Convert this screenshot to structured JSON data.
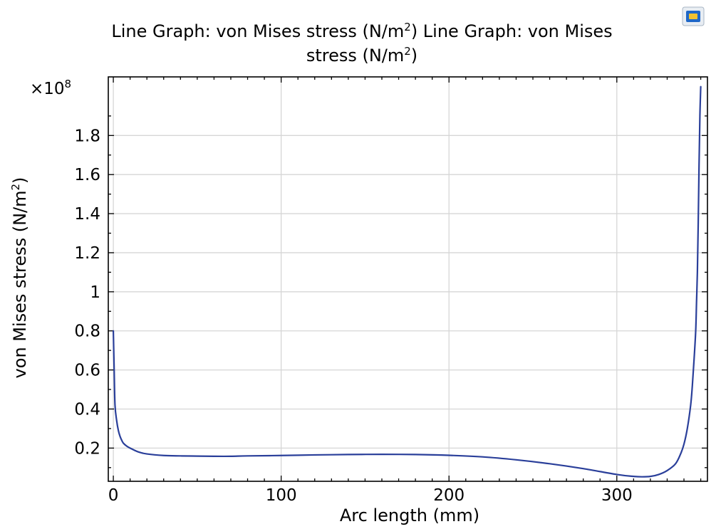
{
  "chart_data": {
    "type": "line",
    "title_line1_a": "Line Graph: von Mises stress (N/m",
    "title_line1_sup": "2",
    "title_line1_b": ")  Line Graph: von Mises",
    "title_line2_a": "stress (N/m",
    "title_line2_sup": "2",
    "title_line2_b": ")",
    "xlabel": "Arc length (mm)",
    "ylabel_a": "von Mises stress (N/m",
    "ylabel_sup": "2",
    "ylabel_b": ")",
    "y_multiplier_base": "×10",
    "y_multiplier_exp": "8",
    "xlim": [
      -3,
      354
    ],
    "ylim": [
      0.03,
      2.1
    ],
    "x_ticks": [
      0,
      100,
      200,
      300
    ],
    "x_tick_labels": [
      "0",
      "100",
      "200",
      "300"
    ],
    "y_ticks": [
      0.2,
      0.4,
      0.6,
      0.8,
      1.0,
      1.2,
      1.4,
      1.6,
      1.8
    ],
    "y_tick_labels": [
      "0.2",
      "0.4",
      "0.6",
      "0.8",
      "1",
      "1.2",
      "1.4",
      "1.6",
      "1.8"
    ],
    "grid": true,
    "line_color": "#2a3f9a",
    "series": [
      {
        "x": [
          0,
          0.5,
          1,
          2,
          3,
          4,
          5,
          6,
          8,
          10,
          15,
          20,
          30,
          40,
          50,
          60,
          70,
          80,
          100,
          120,
          140,
          160,
          180,
          200,
          220,
          240,
          260,
          280,
          300,
          310,
          315,
          320,
          325,
          330,
          335,
          338,
          340,
          342,
          344,
          345,
          346,
          347,
          347.5,
          348,
          348.5,
          349,
          349.5,
          350
        ],
        "y": [
          0.8,
          0.6,
          0.42,
          0.34,
          0.29,
          0.26,
          0.24,
          0.225,
          0.21,
          0.2,
          0.18,
          0.17,
          0.162,
          0.16,
          0.159,
          0.158,
          0.158,
          0.16,
          0.162,
          0.165,
          0.167,
          0.168,
          0.167,
          0.163,
          0.155,
          0.14,
          0.12,
          0.095,
          0.065,
          0.055,
          0.053,
          0.055,
          0.065,
          0.085,
          0.12,
          0.17,
          0.22,
          0.3,
          0.42,
          0.52,
          0.65,
          0.8,
          0.95,
          1.1,
          1.35,
          1.65,
          1.9,
          2.05
        ]
      }
    ]
  },
  "app_icon": "comsol-window-icon"
}
